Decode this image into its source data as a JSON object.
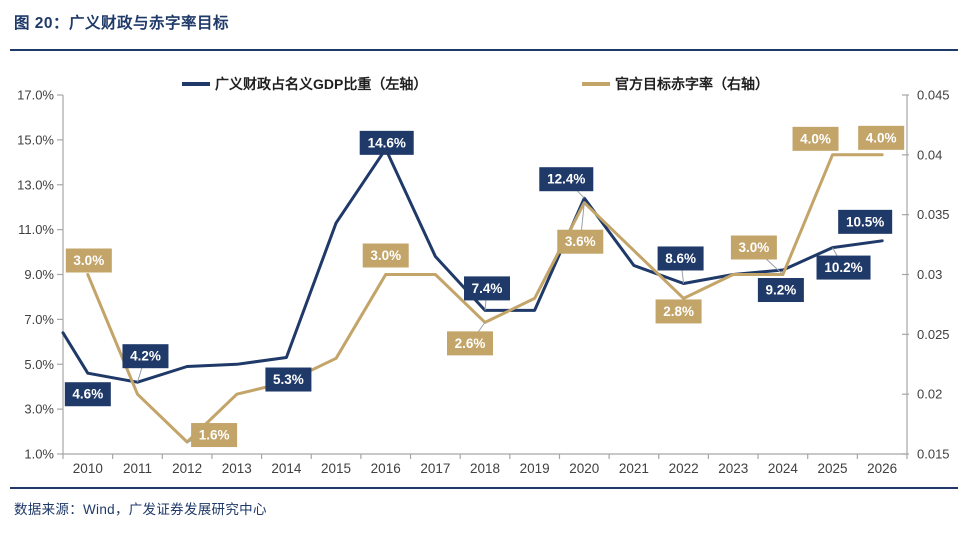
{
  "header": {
    "title": "图 20：广义财政与赤字率目标"
  },
  "footer": {
    "source": "数据来源：Wind，广发证券发展研究中心"
  },
  "colors": {
    "navy": "#1f3968",
    "gold": "#c3a469",
    "axis_line": "#a6a6a6",
    "axis_text": "#404040",
    "leader_line": "#9aa0a6",
    "label_text": "#ffffff"
  },
  "chart_data": {
    "type": "line",
    "title": "广义财政与赤字率目标",
    "categories": [
      "2010",
      "2011",
      "2012",
      "2013",
      "2014",
      "2015",
      "2016",
      "2017",
      "2018",
      "2019",
      "2020",
      "2021",
      "2022",
      "2023",
      "2024",
      "2025",
      "2026"
    ],
    "grid": "off",
    "legend_position": "top",
    "left_axis": {
      "min": 1,
      "max": 17,
      "ticks": [
        {
          "label": "17.0%",
          "value": 17
        },
        {
          "label": "15.0%",
          "value": 15
        },
        {
          "label": "13.0%",
          "value": 13
        },
        {
          "label": "11.0%",
          "value": 11
        },
        {
          "label": "9.0%",
          "value": 9
        },
        {
          "label": "7.0%",
          "value": 7
        },
        {
          "label": "5.0%",
          "value": 5
        },
        {
          "label": "3.0%",
          "value": 3
        },
        {
          "label": "1.0%",
          "value": 1
        }
      ]
    },
    "right_axis": {
      "min": 0.015,
      "max": 0.045,
      "ticks": [
        {
          "label": "0.045",
          "value": 0.045
        },
        {
          "label": "0.04",
          "value": 0.04
        },
        {
          "label": "0.035",
          "value": 0.035
        },
        {
          "label": "0.03",
          "value": 0.03
        },
        {
          "label": "0.025",
          "value": 0.025
        },
        {
          "label": "0.02",
          "value": 0.02
        },
        {
          "label": "0.015",
          "value": 0.015
        }
      ]
    },
    "series": [
      {
        "name": "广义财政占名义GDP比重（左轴）",
        "axis": "left",
        "color": "#1f3968",
        "edge_value": 6.4,
        "values": [
          4.6,
          4.2,
          4.9,
          5.0,
          5.3,
          11.3,
          14.6,
          9.8,
          7.4,
          7.4,
          12.4,
          9.4,
          8.6,
          9.0,
          9.2,
          10.2,
          10.5
        ],
        "labels": [
          {
            "category": "2010",
            "text": "4.6%",
            "dx": 0,
            "dy": 21,
            "leader": false
          },
          {
            "category": "2011",
            "text": "4.2%",
            "dx": 8,
            "dy": -26,
            "leader": true
          },
          {
            "category": "2014",
            "text": "5.3%",
            "dx": 2,
            "dy": 22,
            "leader": false
          },
          {
            "category": "2016",
            "text": "14.6%",
            "dx": 1,
            "dy": -6,
            "leader": false
          },
          {
            "category": "2018",
            "text": "7.4%",
            "dx": 2,
            "dy": -22,
            "leader": true
          },
          {
            "category": "2020",
            "text": "12.4%",
            "dx": -18,
            "dy": -19,
            "leader": true
          },
          {
            "category": "2022",
            "text": "8.6%",
            "dx": -3,
            "dy": -25,
            "leader": true
          },
          {
            "category": "2024",
            "text": "9.2%",
            "dx": -2,
            "dy": 20,
            "leader": false
          },
          {
            "category": "2025",
            "text": "10.2%",
            "dx": 11,
            "dy": 20,
            "leader": true
          },
          {
            "category": "2026",
            "text": "10.5%",
            "dx": -17,
            "dy": -19,
            "leader": false
          }
        ]
      },
      {
        "name": "官方目标赤字率（右轴）",
        "axis": "right",
        "color": "#c3a469",
        "edge_value": null,
        "values": [
          0.03,
          0.02,
          0.016,
          0.02,
          0.021,
          0.023,
          0.03,
          0.03,
          0.026,
          0.028,
          0.036,
          0.032,
          0.028,
          0.03,
          0.03,
          0.04,
          0.04
        ],
        "labels": [
          {
            "category": "2010",
            "text": "3.0%",
            "dx": 1,
            "dy": -14,
            "leader": false
          },
          {
            "category": "2012",
            "text": "1.6%",
            "dx": 27,
            "dy": -7,
            "leader": true
          },
          {
            "category": "2016",
            "text": "3.0%",
            "dx": 0,
            "dy": -19,
            "leader": false
          },
          {
            "category": "2018",
            "text": "2.6%",
            "dx": -15,
            "dy": 21,
            "leader": true
          },
          {
            "category": "2020",
            "text": "3.6%",
            "dx": -4,
            "dy": 39,
            "leader": true
          },
          {
            "category": "2022",
            "text": "2.8%",
            "dx": -5,
            "dy": 13,
            "leader": false
          },
          {
            "category": "2024",
            "text": "3.0%",
            "dx": -29,
            "dy": -27,
            "leader": true
          },
          {
            "category": "2025",
            "text": "4.0%",
            "dx": -17,
            "dy": -16,
            "leader": false
          },
          {
            "category": "2026",
            "text": "4.0%",
            "dx": -1,
            "dy": -17,
            "leader": false
          }
        ]
      }
    ]
  }
}
